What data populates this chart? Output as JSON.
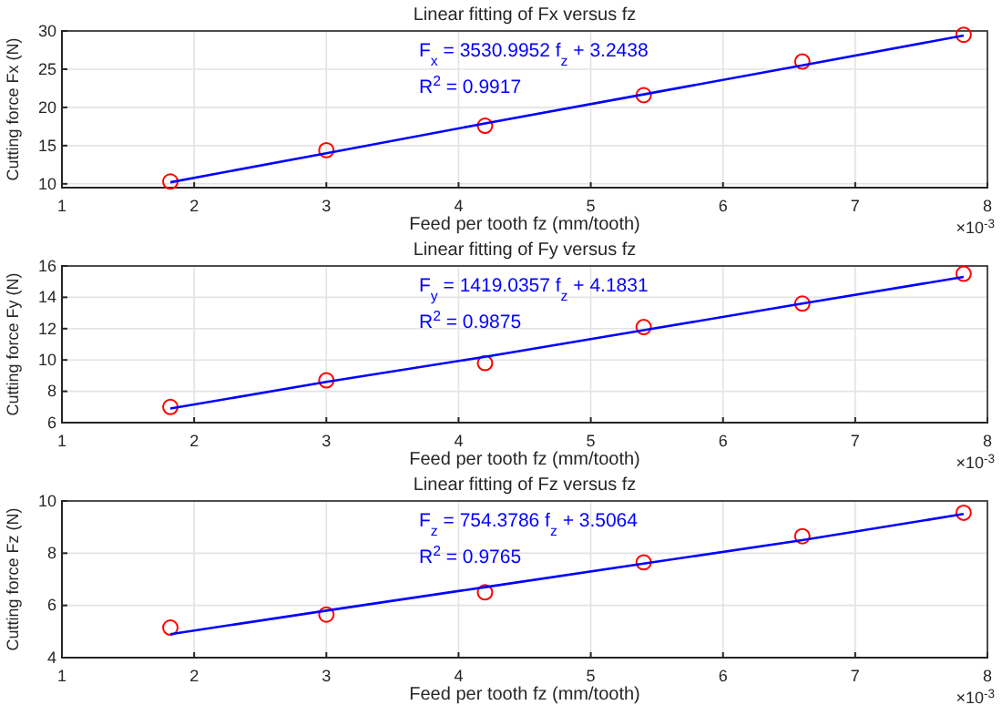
{
  "chart_data": [
    {
      "type": "scatter",
      "title": "Linear fitting of Fx versus fz",
      "xlabel": "Feed per tooth fz (mm/tooth)",
      "ylabel": "Cutting force Fx (N)",
      "xlim": [
        1,
        8
      ],
      "xticks": [
        1,
        2,
        3,
        4,
        5,
        6,
        7,
        8
      ],
      "ylim": [
        9.5,
        30
      ],
      "yticks": [
        10,
        15,
        20,
        25,
        30
      ],
      "grid": true,
      "x": [
        1.82,
        3.0,
        4.2,
        5.4,
        6.6,
        7.82
      ],
      "series": [
        {
          "color": "#ff0000",
          "marker": "circle",
          "values": [
            10.3,
            14.4,
            17.6,
            21.6,
            26.0,
            29.5
          ]
        },
        {
          "type": "line",
          "color": "#0000ff",
          "marker": "none",
          "values": [
            10.2,
            14.0,
            17.9,
            21.7,
            25.5,
            29.4
          ]
        }
      ],
      "annotations": [
        "F$_{x}$ = 3530.9952 f$_{z}$ + 3.2438",
        "R$^{2}$ = 0.9917",
        "×10$^{-3}$"
      ]
    },
    {
      "type": "scatter",
      "title": "Linear fitting of Fy versus fz",
      "xlabel": "Feed per tooth fz (mm/tooth)",
      "ylabel": "Cutting force Fy (N)",
      "xlim": [
        1,
        8
      ],
      "xticks": [
        1,
        2,
        3,
        4,
        5,
        6,
        7,
        8
      ],
      "ylim": [
        6,
        16
      ],
      "yticks": [
        6,
        8,
        10,
        12,
        14,
        16
      ],
      "grid": true,
      "x": [
        1.82,
        3.0,
        4.2,
        5.4,
        6.6,
        7.82
      ],
      "series": [
        {
          "color": "#ff0000",
          "marker": "circle",
          "values": [
            7.0,
            8.7,
            9.8,
            12.1,
            13.6,
            15.5
          ]
        },
        {
          "type": "line",
          "color": "#0000ff",
          "marker": "none",
          "values": [
            6.9,
            8.6,
            10.2,
            11.9,
            13.6,
            15.3
          ]
        }
      ],
      "annotations": [
        "F$_{y}$ = 1419.0357 f$_{z}$ + 4.1831",
        "R$^{2}$ = 0.9875",
        "×10$^{-3}$"
      ]
    },
    {
      "type": "scatter",
      "title": "Linear fitting of Fz versus fz",
      "xlabel": "Feed per tooth fz (mm/tooth)",
      "ylabel": "Cutting force Fz (N)",
      "xlim": [
        1,
        8
      ],
      "xticks": [
        1,
        2,
        3,
        4,
        5,
        6,
        7,
        8
      ],
      "ylim": [
        4,
        10
      ],
      "yticks": [
        4,
        6,
        8,
        10
      ],
      "grid": true,
      "x": [
        1.82,
        3.0,
        4.2,
        5.4,
        6.6,
        7.82
      ],
      "series": [
        {
          "color": "#ff0000",
          "marker": "circle",
          "values": [
            5.15,
            5.65,
            6.5,
            7.65,
            8.65,
            9.55
          ]
        },
        {
          "type": "line",
          "color": "#0000ff",
          "marker": "none",
          "values": [
            4.9,
            5.8,
            6.7,
            7.6,
            8.5,
            9.5
          ]
        }
      ],
      "annotations": [
        "F$_{z}$ = 754.3786 f$_{z}$ + 3.5064",
        "R$^{2}$ = 0.9765",
        "×10$^{-3}$"
      ]
    }
  ]
}
